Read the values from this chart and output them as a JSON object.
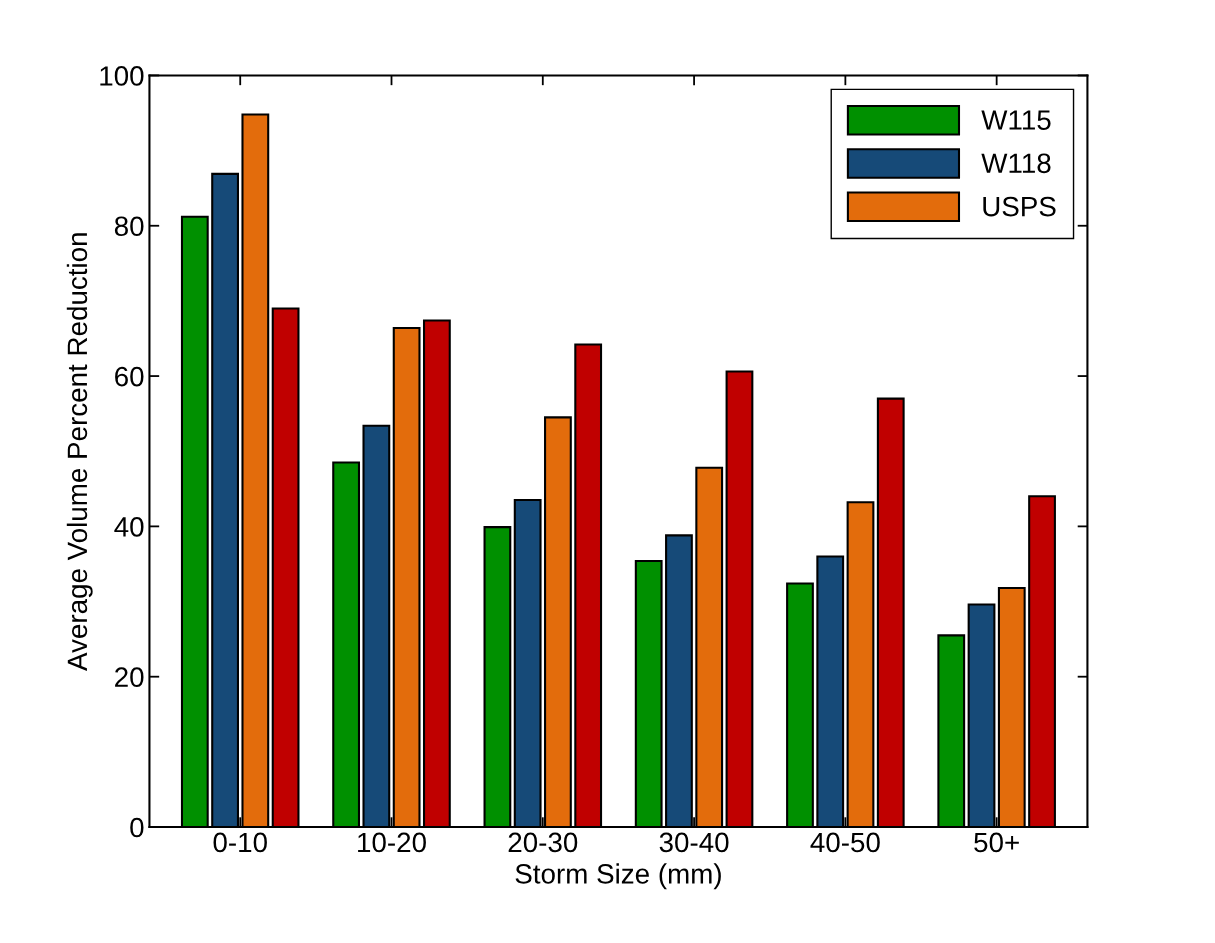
{
  "chart_data": {
    "type": "bar",
    "xlabel": "Storm Size (mm)",
    "ylabel": "Average Volume Percent Reduction",
    "categories": [
      "0-10",
      "10-20",
      "20-30",
      "30-40",
      "40-50",
      "50+"
    ],
    "series": [
      {
        "name": "W115",
        "color": "#009000",
        "values": [
          81.2,
          48.5,
          39.9,
          35.4,
          32.4,
          25.5
        ]
      },
      {
        "name": "W118",
        "color": "#164a78",
        "values": [
          86.9,
          53.4,
          43.5,
          38.8,
          36.0,
          29.6
        ]
      },
      {
        "name": "USPS",
        "color": "#e36c0c",
        "values": [
          94.8,
          66.4,
          54.5,
          47.8,
          43.2,
          31.8
        ]
      },
      {
        "color": "#c00000",
        "values": [
          69.0,
          67.4,
          64.2,
          60.6,
          57.0,
          44.0
        ]
      }
    ],
    "ylim": [
      0,
      100
    ],
    "yticks": [
      0,
      20,
      40,
      60,
      80,
      100
    ],
    "grid": false,
    "legend": "top right"
  }
}
